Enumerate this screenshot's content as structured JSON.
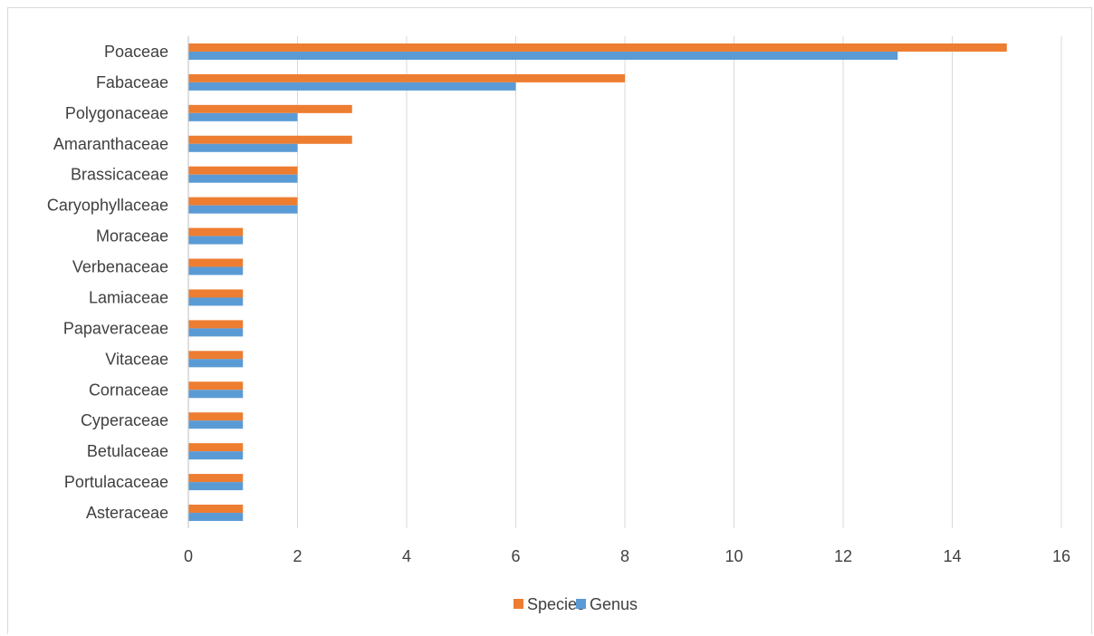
{
  "chart_data": {
    "type": "bar",
    "orientation": "horizontal",
    "categories": [
      "Poaceae",
      "Fabaceae",
      "Polygonaceae",
      "Amaranthaceae",
      "Brassicaceae",
      "Caryophyllaceae",
      "Moraceae",
      "Verbenaceae",
      "Lamiaceae",
      "Papaveraceae",
      "Vitaceae",
      "Cornaceae",
      "Cyperaceae",
      "Betulaceae",
      "Portulacaceae",
      "Asteraceae"
    ],
    "series": [
      {
        "name": "Species",
        "color": "#ED7D31",
        "values": [
          15,
          8,
          3,
          3,
          2,
          2,
          1,
          1,
          1,
          1,
          1,
          1,
          1,
          1,
          1,
          1
        ]
      },
      {
        "name": "Genus",
        "color": "#5B9BD5",
        "values": [
          13,
          6,
          2,
          2,
          2,
          2,
          1,
          1,
          1,
          1,
          1,
          1,
          1,
          1,
          1,
          1
        ]
      }
    ],
    "xlim": [
      0,
      16
    ],
    "xticks": [
      0,
      2,
      4,
      6,
      8,
      10,
      12,
      14,
      16
    ],
    "grid": true,
    "legend_position": "bottom",
    "title": "",
    "xlabel": "",
    "ylabel": ""
  }
}
